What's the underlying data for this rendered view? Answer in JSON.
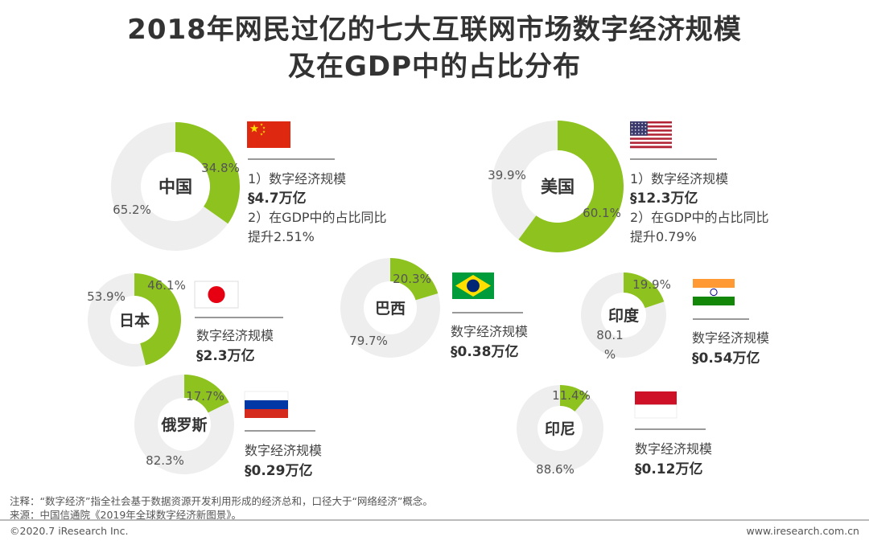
{
  "title": {
    "line1": "2018年网民过亿的七大互联网市场数字经济规模",
    "line2": "及在GDP中的占比分布"
  },
  "chart_data": {
    "type": "pie",
    "colors": {
      "accent": "#8DC21F",
      "rest": "#EEEEEE",
      "flag_red": "#DE2910",
      "flag_gold": "#FFDE00"
    },
    "items": [
      {
        "country": "中国",
        "share": 34.8,
        "share_label": "34.8%",
        "rest_label": "65.2%",
        "flag": "china-flag-icon",
        "metric_label": "1）数字经济规模",
        "metric_value": "§4.7万亿",
        "extra_label": "2）在GDP中的占比同比",
        "extra_value": "提升2.51%"
      },
      {
        "country": "美国",
        "share": 60.1,
        "share_label": "60.1%",
        "rest_label": "39.9%",
        "flag": "usa-flag-icon",
        "metric_label": "1）数字经济规模",
        "metric_value": "§12.3万亿",
        "extra_label": "2）在GDP中的占比同比",
        "extra_value": "提升0.79%"
      },
      {
        "country": "日本",
        "share": 46.1,
        "share_label": "46.1%",
        "rest_label": "53.9%",
        "flag": "japan-flag-icon",
        "metric_label": "数字经济规模",
        "metric_value": "§2.3万亿"
      },
      {
        "country": "巴西",
        "share": 20.3,
        "share_label": "20.3%",
        "rest_label": "79.7%",
        "flag": "brazil-flag-icon",
        "metric_label": "数字经济规模",
        "metric_value": "§0.38万亿"
      },
      {
        "country": "印度",
        "share": 19.9,
        "share_label": "19.9%",
        "rest_label": "80.1%",
        "flag": "india-flag-icon",
        "metric_label": "数字经济规模",
        "metric_value": "§0.54万亿"
      },
      {
        "country": "俄罗斯",
        "share": 17.7,
        "share_label": "17.7%",
        "rest_label": "82.3%",
        "flag": "russia-flag-icon",
        "metric_label": "数字经济规模",
        "metric_value": "§0.29万亿"
      },
      {
        "country": "印尼",
        "share": 11.4,
        "share_label": "11.4%",
        "rest_label": "88.6%",
        "flag": "indonesia-flag-icon",
        "metric_label": "数字经济规模",
        "metric_value": "§0.12万亿"
      }
    ]
  },
  "notes": {
    "note": "注释：“数字经济”指全社会基于数据资源开发利用形成的经济总和，口径大于“网络经济”概念。",
    "source": "来源：中国信通院《2019年全球数字经济新图景》。"
  },
  "footer": {
    "copyright": "©2020.7 iResearch Inc.",
    "website": "www.iresearch.com.cn"
  }
}
